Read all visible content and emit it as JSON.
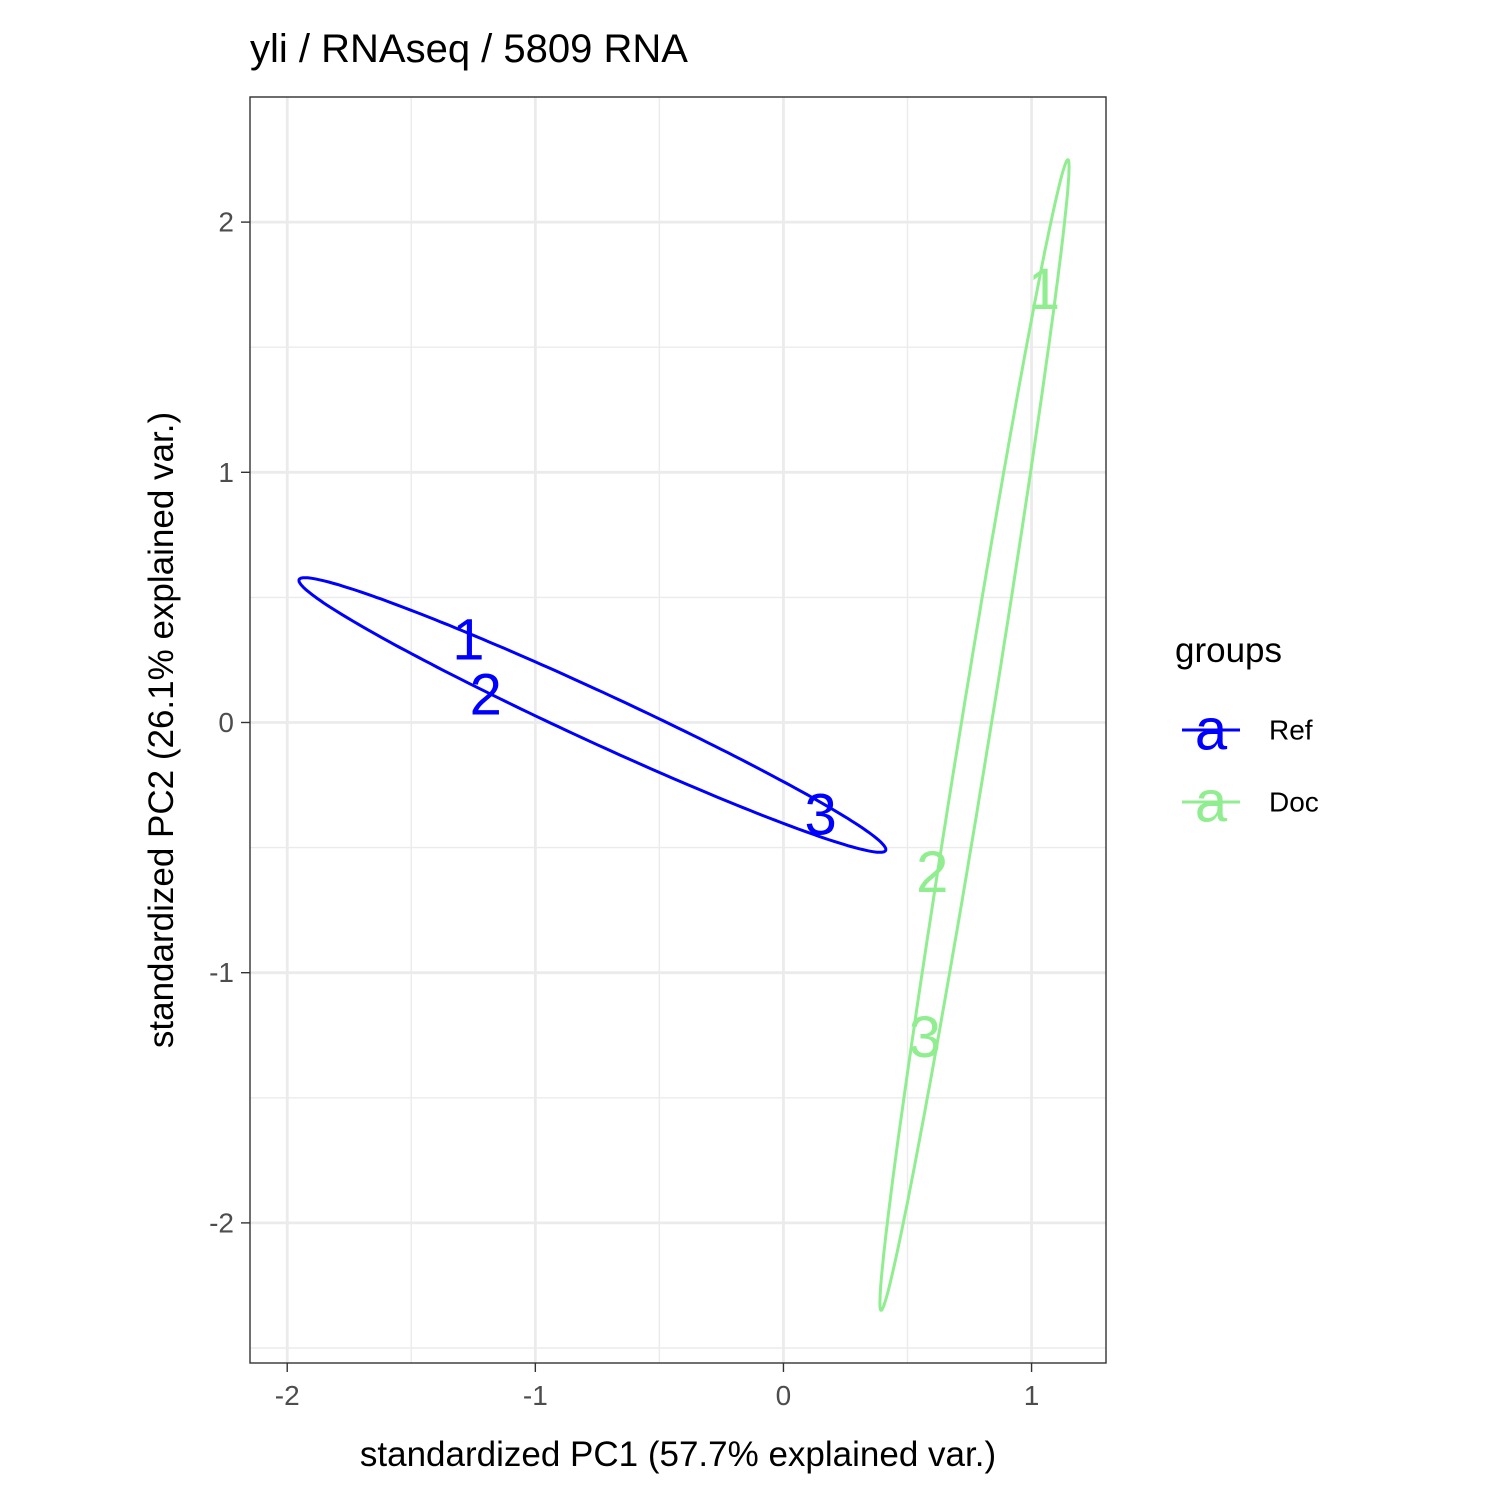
{
  "chart_data": {
    "type": "scatter",
    "title": "yli / RNAseq / 5809  RNA",
    "xlabel": "standardized PC1 (57.7% explained var.)",
    "ylabel": "standardized PC2 (26.1% explained var.)",
    "xlim": [
      -2.15,
      1.3
    ],
    "ylim": [
      -2.56,
      2.5
    ],
    "x_ticks": [
      -2,
      -1,
      0,
      1
    ],
    "x_tick_labels": [
      "-2",
      "-1",
      "0",
      "1"
    ],
    "y_ticks": [
      -2,
      -1,
      0,
      1,
      2
    ],
    "y_tick_labels": [
      "-2",
      "-1",
      "0",
      "1",
      "2"
    ],
    "grid": true,
    "legend": {
      "title": "groups",
      "position": "right",
      "glyph": "a"
    },
    "series": [
      {
        "name": "Ref",
        "color": "#0000ff",
        "points": [
          {
            "label": "1",
            "x": -1.27,
            "y": 0.33
          },
          {
            "label": "2",
            "x": -1.2,
            "y": 0.11
          },
          {
            "label": "3",
            "x": 0.15,
            "y": -0.37
          }
        ],
        "ellipse": {
          "center": [
            -0.77,
            0.03
          ],
          "semi_major": 1.3,
          "semi_minor": 0.1,
          "angle_deg": -24.6
        }
      },
      {
        "name": "Doc",
        "color": "#90ee90",
        "points": [
          {
            "label": "1",
            "x": 1.05,
            "y": 1.73
          },
          {
            "label": "2",
            "x": 0.6,
            "y": -0.6
          },
          {
            "label": "3",
            "x": 0.57,
            "y": -1.26
          }
        ],
        "ellipse": {
          "center": [
            0.77,
            -0.05
          ],
          "semi_major": 2.33,
          "semi_minor": 0.06,
          "angle_deg": 80.7
        }
      }
    ]
  }
}
